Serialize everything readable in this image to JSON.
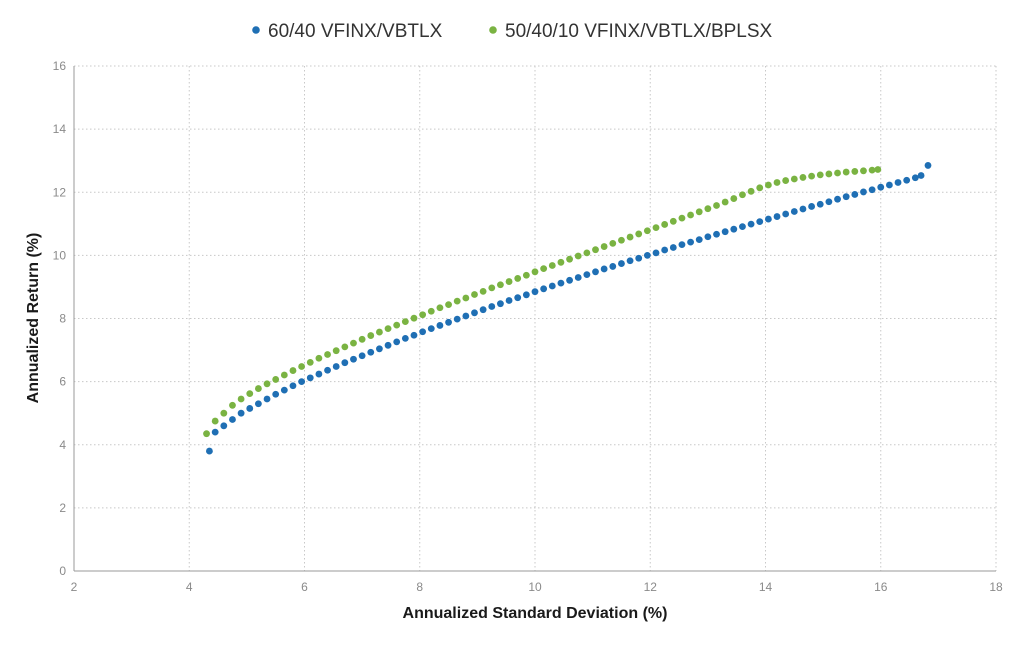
{
  "chart_data": {
    "type": "scatter",
    "xlabel": "Annualized Standard Deviation (%)",
    "ylabel": "Annualized Return (%)",
    "xlim": [
      2,
      18
    ],
    "ylim": [
      0,
      16
    ],
    "xticks": [
      2,
      4,
      6,
      8,
      10,
      12,
      14,
      16,
      18
    ],
    "yticks": [
      0,
      2,
      4,
      6,
      8,
      10,
      12,
      14,
      16
    ],
    "grid": true,
    "legend_position": "top-center",
    "series": [
      {
        "name": "60/40 VFINX/VBTLX",
        "color": "#1f6fb4",
        "points": [
          {
            "x": 4.35,
            "y": 3.8
          },
          {
            "x": 4.45,
            "y": 4.4
          },
          {
            "x": 4.6,
            "y": 4.6
          },
          {
            "x": 4.75,
            "y": 4.8
          },
          {
            "x": 4.9,
            "y": 5.0
          },
          {
            "x": 5.05,
            "y": 5.15
          },
          {
            "x": 5.2,
            "y": 5.3
          },
          {
            "x": 5.35,
            "y": 5.45
          },
          {
            "x": 5.5,
            "y": 5.6
          },
          {
            "x": 5.65,
            "y": 5.73
          },
          {
            "x": 5.8,
            "y": 5.87
          },
          {
            "x": 5.95,
            "y": 6.0
          },
          {
            "x": 6.1,
            "y": 6.12
          },
          {
            "x": 6.25,
            "y": 6.24
          },
          {
            "x": 6.4,
            "y": 6.36
          },
          {
            "x": 6.55,
            "y": 6.48
          },
          {
            "x": 6.7,
            "y": 6.6
          },
          {
            "x": 6.85,
            "y": 6.71
          },
          {
            "x": 7.0,
            "y": 6.82
          },
          {
            "x": 7.15,
            "y": 6.93
          },
          {
            "x": 7.3,
            "y": 7.04
          },
          {
            "x": 7.45,
            "y": 7.15
          },
          {
            "x": 7.6,
            "y": 7.26
          },
          {
            "x": 7.75,
            "y": 7.37
          },
          {
            "x": 7.9,
            "y": 7.47
          },
          {
            "x": 8.05,
            "y": 7.58
          },
          {
            "x": 8.2,
            "y": 7.68
          },
          {
            "x": 8.35,
            "y": 7.78
          },
          {
            "x": 8.5,
            "y": 7.88
          },
          {
            "x": 8.65,
            "y": 7.98
          },
          {
            "x": 8.8,
            "y": 8.08
          },
          {
            "x": 8.95,
            "y": 8.18
          },
          {
            "x": 9.1,
            "y": 8.28
          },
          {
            "x": 9.25,
            "y": 8.38
          },
          {
            "x": 9.4,
            "y": 8.47
          },
          {
            "x": 9.55,
            "y": 8.57
          },
          {
            "x": 9.7,
            "y": 8.66
          },
          {
            "x": 9.85,
            "y": 8.75
          },
          {
            "x": 10.0,
            "y": 8.85
          },
          {
            "x": 10.15,
            "y": 8.94
          },
          {
            "x": 10.3,
            "y": 9.03
          },
          {
            "x": 10.45,
            "y": 9.12
          },
          {
            "x": 10.6,
            "y": 9.21
          },
          {
            "x": 10.75,
            "y": 9.3
          },
          {
            "x": 10.9,
            "y": 9.39
          },
          {
            "x": 11.05,
            "y": 9.48
          },
          {
            "x": 11.2,
            "y": 9.57
          },
          {
            "x": 11.35,
            "y": 9.65
          },
          {
            "x": 11.5,
            "y": 9.74
          },
          {
            "x": 11.65,
            "y": 9.83
          },
          {
            "x": 11.8,
            "y": 9.91
          },
          {
            "x": 11.95,
            "y": 10.0
          },
          {
            "x": 12.1,
            "y": 10.08
          },
          {
            "x": 12.25,
            "y": 10.17
          },
          {
            "x": 12.4,
            "y": 10.25
          },
          {
            "x": 12.55,
            "y": 10.34
          },
          {
            "x": 12.7,
            "y": 10.42
          },
          {
            "x": 12.85,
            "y": 10.5
          },
          {
            "x": 13.0,
            "y": 10.59
          },
          {
            "x": 13.15,
            "y": 10.67
          },
          {
            "x": 13.3,
            "y": 10.75
          },
          {
            "x": 13.45,
            "y": 10.83
          },
          {
            "x": 13.6,
            "y": 10.91
          },
          {
            "x": 13.75,
            "y": 10.99
          },
          {
            "x": 13.9,
            "y": 11.07
          },
          {
            "x": 14.05,
            "y": 11.15
          },
          {
            "x": 14.2,
            "y": 11.23
          },
          {
            "x": 14.35,
            "y": 11.31
          },
          {
            "x": 14.5,
            "y": 11.39
          },
          {
            "x": 14.65,
            "y": 11.47
          },
          {
            "x": 14.8,
            "y": 11.55
          },
          {
            "x": 14.95,
            "y": 11.62
          },
          {
            "x": 15.1,
            "y": 11.7
          },
          {
            "x": 15.25,
            "y": 11.78
          },
          {
            "x": 15.4,
            "y": 11.86
          },
          {
            "x": 15.55,
            "y": 11.93
          },
          {
            "x": 15.7,
            "y": 12.01
          },
          {
            "x": 15.85,
            "y": 12.08
          },
          {
            "x": 16.0,
            "y": 12.16
          },
          {
            "x": 16.15,
            "y": 12.23
          },
          {
            "x": 16.3,
            "y": 12.31
          },
          {
            "x": 16.45,
            "y": 12.38
          },
          {
            "x": 16.6,
            "y": 12.46
          },
          {
            "x": 16.7,
            "y": 12.53
          },
          {
            "x": 16.82,
            "y": 12.85
          }
        ]
      },
      {
        "name": "50/40/10 VFINX/VBTLX/BPLSX",
        "color": "#7ab342",
        "points": [
          {
            "x": 4.3,
            "y": 4.35
          },
          {
            "x": 4.45,
            "y": 4.75
          },
          {
            "x": 4.6,
            "y": 5.0
          },
          {
            "x": 4.75,
            "y": 5.25
          },
          {
            "x": 4.9,
            "y": 5.45
          },
          {
            "x": 5.05,
            "y": 5.62
          },
          {
            "x": 5.2,
            "y": 5.78
          },
          {
            "x": 5.35,
            "y": 5.93
          },
          {
            "x": 5.5,
            "y": 6.07
          },
          {
            "x": 5.65,
            "y": 6.21
          },
          {
            "x": 5.8,
            "y": 6.35
          },
          {
            "x": 5.95,
            "y": 6.48
          },
          {
            "x": 6.1,
            "y": 6.61
          },
          {
            "x": 6.25,
            "y": 6.74
          },
          {
            "x": 6.4,
            "y": 6.86
          },
          {
            "x": 6.55,
            "y": 6.98
          },
          {
            "x": 6.7,
            "y": 7.1
          },
          {
            "x": 6.85,
            "y": 7.22
          },
          {
            "x": 7.0,
            "y": 7.34
          },
          {
            "x": 7.15,
            "y": 7.46
          },
          {
            "x": 7.3,
            "y": 7.57
          },
          {
            "x": 7.45,
            "y": 7.68
          },
          {
            "x": 7.6,
            "y": 7.79
          },
          {
            "x": 7.75,
            "y": 7.9
          },
          {
            "x": 7.9,
            "y": 8.01
          },
          {
            "x": 8.05,
            "y": 8.12
          },
          {
            "x": 8.2,
            "y": 8.23
          },
          {
            "x": 8.35,
            "y": 8.34
          },
          {
            "x": 8.5,
            "y": 8.44
          },
          {
            "x": 8.65,
            "y": 8.55
          },
          {
            "x": 8.8,
            "y": 8.65
          },
          {
            "x": 8.95,
            "y": 8.76
          },
          {
            "x": 9.1,
            "y": 8.86
          },
          {
            "x": 9.25,
            "y": 8.97
          },
          {
            "x": 9.4,
            "y": 9.07
          },
          {
            "x": 9.55,
            "y": 9.17
          },
          {
            "x": 9.7,
            "y": 9.27
          },
          {
            "x": 9.85,
            "y": 9.37
          },
          {
            "x": 10.0,
            "y": 9.48
          },
          {
            "x": 10.15,
            "y": 9.58
          },
          {
            "x": 10.3,
            "y": 9.68
          },
          {
            "x": 10.45,
            "y": 9.78
          },
          {
            "x": 10.6,
            "y": 9.88
          },
          {
            "x": 10.75,
            "y": 9.98
          },
          {
            "x": 10.9,
            "y": 10.08
          },
          {
            "x": 11.05,
            "y": 10.18
          },
          {
            "x": 11.2,
            "y": 10.28
          },
          {
            "x": 11.35,
            "y": 10.38
          },
          {
            "x": 11.5,
            "y": 10.48
          },
          {
            "x": 11.65,
            "y": 10.58
          },
          {
            "x": 11.8,
            "y": 10.68
          },
          {
            "x": 11.95,
            "y": 10.78
          },
          {
            "x": 12.1,
            "y": 10.88
          },
          {
            "x": 12.25,
            "y": 10.98
          },
          {
            "x": 12.4,
            "y": 11.08
          },
          {
            "x": 12.55,
            "y": 11.18
          },
          {
            "x": 12.7,
            "y": 11.28
          },
          {
            "x": 12.85,
            "y": 11.38
          },
          {
            "x": 13.0,
            "y": 11.48
          },
          {
            "x": 13.15,
            "y": 11.58
          },
          {
            "x": 13.3,
            "y": 11.69
          },
          {
            "x": 13.45,
            "y": 11.8
          },
          {
            "x": 13.6,
            "y": 11.92
          },
          {
            "x": 13.75,
            "y": 12.03
          },
          {
            "x": 13.9,
            "y": 12.14
          },
          {
            "x": 14.05,
            "y": 12.23
          },
          {
            "x": 14.2,
            "y": 12.31
          },
          {
            "x": 14.35,
            "y": 12.37
          },
          {
            "x": 14.5,
            "y": 12.42
          },
          {
            "x": 14.65,
            "y": 12.47
          },
          {
            "x": 14.8,
            "y": 12.51
          },
          {
            "x": 14.95,
            "y": 12.55
          },
          {
            "x": 15.1,
            "y": 12.58
          },
          {
            "x": 15.25,
            "y": 12.61
          },
          {
            "x": 15.4,
            "y": 12.64
          },
          {
            "x": 15.55,
            "y": 12.66
          },
          {
            "x": 15.7,
            "y": 12.68
          },
          {
            "x": 15.85,
            "y": 12.7
          },
          {
            "x": 15.95,
            "y": 12.72
          }
        ]
      }
    ]
  }
}
